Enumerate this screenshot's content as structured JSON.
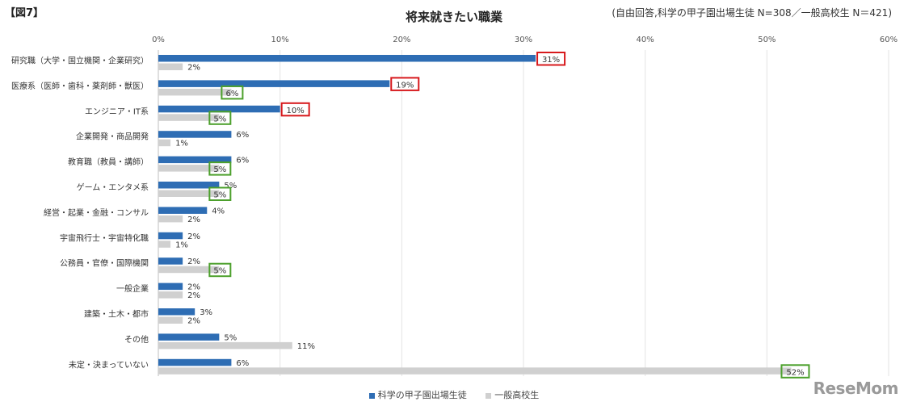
{
  "figure_label": "【図7】",
  "note": "(自由回答,科学の甲子園出場生徒 N=308／一般高校生 N＝421)",
  "watermark": "ReseMom",
  "colors": {
    "series1": "#2e6db4",
    "series2": "#d0d0d0",
    "highlight_red": "#d7191c",
    "highlight_green": "#4ca02c",
    "grid": "#e3e3e3"
  },
  "chart_data": {
    "type": "bar",
    "orientation": "horizontal",
    "title": "将来就きたい職業",
    "xlabel": "",
    "ylabel": "",
    "xlim": [
      0,
      60
    ],
    "ticks": [
      "0%",
      "10%",
      "20%",
      "30%",
      "40%",
      "50%",
      "60%"
    ],
    "grid": true,
    "legend_position": "bottom",
    "categories": [
      "研究職（大学・国立機関・企業研究）",
      "医療系（医師・歯科・薬剤師・獣医）",
      "エンジニア・IT系",
      "企業開発・商品開発",
      "教育職（教員・講師）",
      "ゲーム・エンタメ系",
      "経営・起業・金融・コンサル",
      "宇宙飛行士・宇宙特化職",
      "公務員・官僚・国際機関",
      "一般企業",
      "建築・土木・都市",
      "その他",
      "未定・決まっていない"
    ],
    "series": [
      {
        "name": "科学の甲子園出場生徒",
        "values": [
          31,
          19,
          10,
          6,
          6,
          5,
          4,
          2,
          2,
          2,
          3,
          5,
          6
        ],
        "labels": [
          "31%",
          "19%",
          "10%",
          "6%",
          "6%",
          "5%",
          "4%",
          "2%",
          "2%",
          "2%",
          "3%",
          "5%",
          "6%"
        ],
        "highlighted": [
          true,
          true,
          true,
          false,
          false,
          false,
          false,
          false,
          false,
          false,
          false,
          false,
          false
        ]
      },
      {
        "name": "一般高校生",
        "values": [
          2,
          6,
          5,
          1,
          5,
          5,
          2,
          1,
          5,
          2,
          2,
          11,
          52
        ],
        "labels": [
          "2%",
          "6%",
          "5%",
          "1%",
          "5%",
          "5%",
          "2%",
          "1%",
          "5%",
          "2%",
          "2%",
          "11%",
          "52%"
        ],
        "highlighted": [
          false,
          true,
          true,
          false,
          true,
          true,
          false,
          false,
          true,
          false,
          false,
          false,
          true
        ]
      }
    ]
  }
}
